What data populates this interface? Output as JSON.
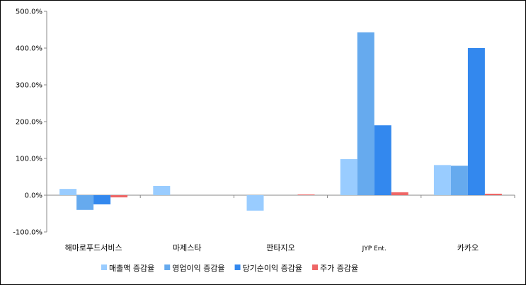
{
  "chart_data": {
    "type": "bar",
    "categories": [
      "해마로푸드서비스",
      "마제스타",
      "판타지오",
      "JYP Ent.",
      "카카오"
    ],
    "series": [
      {
        "name": "매출액 증감율",
        "color": "#99CCFF",
        "values": [
          17,
          25,
          -42,
          98,
          82
        ]
      },
      {
        "name": "영업이익 증감율",
        "color": "#66AAEE",
        "values": [
          -40,
          0,
          0,
          443,
          80
        ]
      },
      {
        "name": "당기순이익 증감율",
        "color": "#3388EE",
        "values": [
          -25,
          0,
          0,
          190,
          400
        ]
      },
      {
        "name": "주가 증감율",
        "color": "#EE6666",
        "values": [
          -6,
          0,
          2,
          8,
          4
        ]
      }
    ],
    "ylim": [
      -100,
      500
    ],
    "yticks": [
      "-100.0%",
      "0.0%",
      "100.0%",
      "200.0%",
      "300.0%",
      "400.0%",
      "500.0%"
    ],
    "ytick_values": [
      -100,
      0,
      100,
      200,
      300,
      400,
      500
    ],
    "grid": false,
    "legend_position": "bottom",
    "title": "",
    "xlabel": "",
    "ylabel": ""
  }
}
